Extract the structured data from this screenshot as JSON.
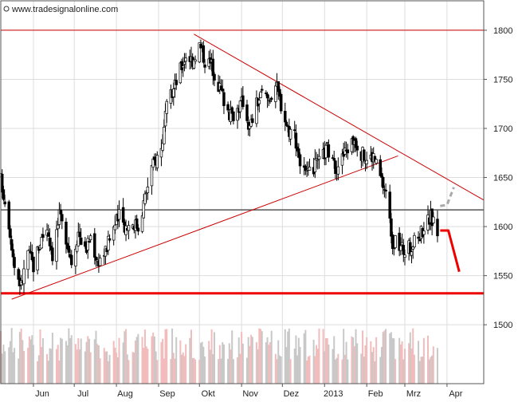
{
  "watermark": "www.tradesignalonline.com",
  "chart_data": {
    "type": "candlestick",
    "x_tick_labels": [
      "Jun",
      "Jul",
      "Aug",
      "Sep",
      "Okt",
      "Nov",
      "Dez",
      "2013",
      "Feb",
      "Mrz",
      "Apr"
    ],
    "y_tick_labels": [
      "1800",
      "1750",
      "1700",
      "1650",
      "1600",
      "1550",
      "1500"
    ],
    "y_ticks": [
      1800,
      1750,
      1700,
      1650,
      1600,
      1550,
      1500
    ],
    "ylim": [
      1440,
      1830
    ],
    "x_start": "2012-05-08",
    "x_end": "2013-04-28",
    "grid": true,
    "horizontal_lines": [
      {
        "level": 1800,
        "color": "#cc0000"
      },
      {
        "level": 1617,
        "color": "#555555"
      },
      {
        "level": 1532,
        "color": "#ee0000"
      }
    ],
    "trend_lines": [
      {
        "from": [
          "2012-05-16",
          1526
        ],
        "to": [
          "2013-02-24",
          1672
        ],
        "color": "#cc0000"
      },
      {
        "from": [
          "2012-09-27",
          1796
        ],
        "to": [
          "2013-04-28",
          1627
        ],
        "color": "#cc0000"
      }
    ],
    "projections": [
      {
        "points": [
          [
            "2013-03-27",
            1596
          ],
          [
            "2013-04-02",
            1596
          ],
          [
            "2013-04-10",
            1554
          ]
        ],
        "color": "#ee0000",
        "style": "solid"
      },
      {
        "points": [
          [
            "2013-03-27",
            1621
          ],
          [
            "2013-04-01",
            1622
          ],
          [
            "2013-04-06",
            1640
          ]
        ],
        "color": "#aaaaaa",
        "style": "dashed"
      }
    ],
    "close_path": [
      [
        "2012-05-08",
        1648
      ],
      [
        "2012-05-14",
        1605
      ],
      [
        "2012-05-18",
        1560
      ],
      [
        "2012-05-23",
        1540
      ],
      [
        "2012-05-28",
        1575
      ],
      [
        "2012-06-01",
        1560
      ],
      [
        "2012-06-06",
        1585
      ],
      [
        "2012-06-11",
        1600
      ],
      [
        "2012-06-15",
        1572
      ],
      [
        "2012-06-20",
        1610
      ],
      [
        "2012-06-25",
        1590
      ],
      [
        "2012-06-29",
        1565
      ],
      [
        "2012-07-04",
        1595
      ],
      [
        "2012-07-09",
        1575
      ],
      [
        "2012-07-13",
        1590
      ],
      [
        "2012-07-18",
        1565
      ],
      [
        "2012-07-24",
        1575
      ],
      [
        "2012-07-30",
        1600
      ],
      [
        "2012-08-03",
        1610
      ],
      [
        "2012-08-08",
        1600
      ],
      [
        "2012-08-13",
        1605
      ],
      [
        "2012-08-17",
        1600
      ],
      [
        "2012-08-22",
        1630
      ],
      [
        "2012-08-27",
        1660
      ],
      [
        "2012-09-03",
        1680
      ],
      [
        "2012-09-07",
        1720
      ],
      [
        "2012-09-12",
        1740
      ],
      [
        "2012-09-17",
        1760
      ],
      [
        "2012-09-21",
        1775
      ],
      [
        "2012-09-26",
        1770
      ],
      [
        "2012-10-01",
        1785
      ],
      [
        "2012-10-05",
        1770
      ],
      [
        "2012-10-10",
        1765
      ],
      [
        "2012-10-15",
        1745
      ],
      [
        "2012-10-19",
        1730
      ],
      [
        "2012-10-24",
        1712
      ],
      [
        "2012-10-29",
        1720
      ],
      [
        "2012-11-02",
        1728
      ],
      [
        "2012-11-07",
        1700
      ],
      [
        "2012-11-12",
        1725
      ],
      [
        "2012-11-16",
        1735
      ],
      [
        "2012-11-21",
        1730
      ],
      [
        "2012-11-26",
        1745
      ],
      [
        "2012-11-30",
        1725
      ],
      [
        "2012-12-05",
        1700
      ],
      [
        "2012-12-10",
        1695
      ],
      [
        "2012-12-14",
        1665
      ],
      [
        "2012-12-19",
        1650
      ],
      [
        "2012-12-24",
        1660
      ],
      [
        "2012-12-28",
        1665
      ],
      [
        "2013-01-03",
        1680
      ],
      [
        "2013-01-08",
        1660
      ],
      [
        "2013-01-14",
        1670
      ],
      [
        "2013-01-18",
        1680
      ],
      [
        "2013-01-23",
        1690
      ],
      [
        "2013-01-28",
        1675
      ],
      [
        "2013-02-01",
        1668
      ],
      [
        "2013-02-06",
        1672
      ],
      [
        "2013-02-11",
        1650
      ],
      [
        "2013-02-15",
        1635
      ],
      [
        "2013-02-20",
        1585
      ],
      [
        "2013-02-25",
        1580
      ],
      [
        "2013-03-01",
        1575
      ],
      [
        "2013-03-06",
        1580
      ],
      [
        "2013-03-11",
        1590
      ],
      [
        "2013-03-15",
        1600
      ],
      [
        "2013-03-20",
        1610
      ],
      [
        "2013-03-25",
        1595
      ]
    ]
  }
}
